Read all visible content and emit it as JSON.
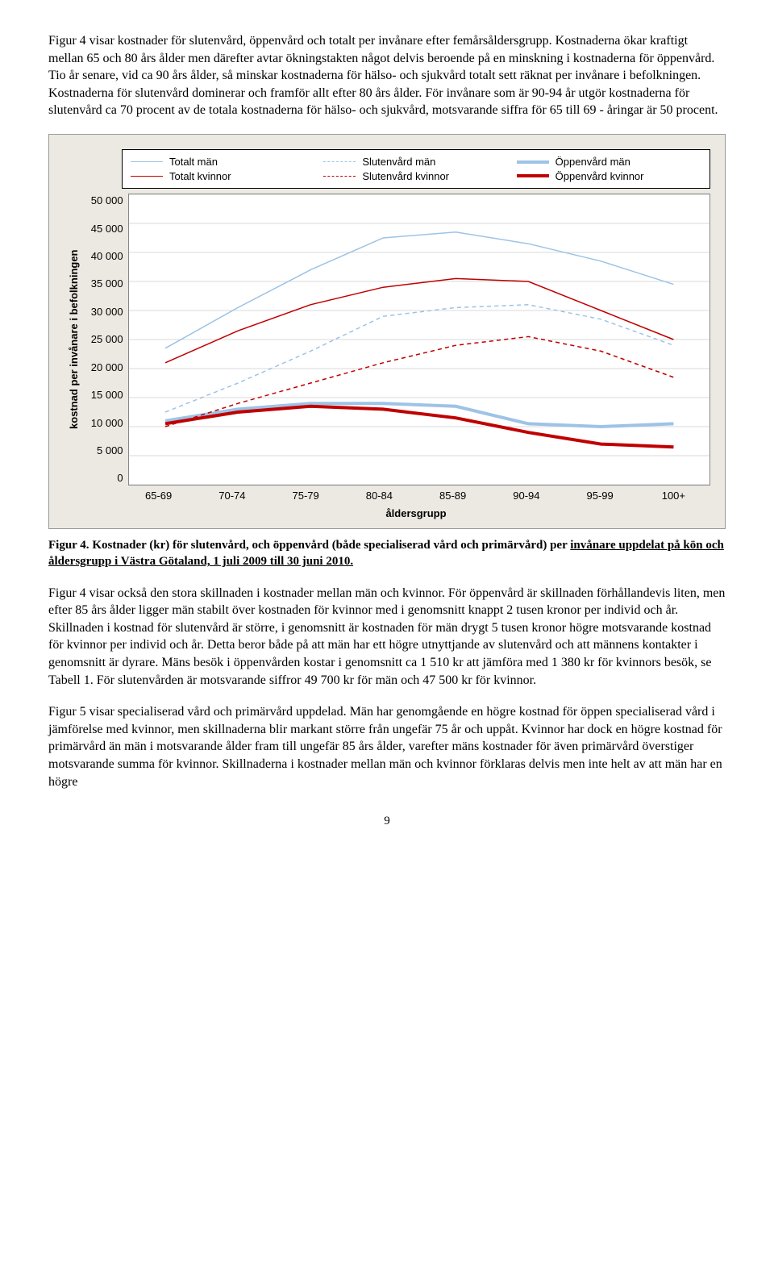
{
  "paragraphs": {
    "p1": "Figur 4 visar kostnader för slutenvård, öppenvård och totalt per invånare efter femårsåldersgrupp. Kostnaderna ökar kraftigt mellan 65 och 80 års ålder men därefter avtar ökningstakten något delvis beroende på en minskning i kostnaderna för öppenvård. Tio år senare, vid ca 90 års ålder, så minskar kostnaderna för hälso- och sjukvård totalt sett räknat per invånare i befolkningen. Kostnaderna för slutenvård dominerar och framför allt efter 80 års ålder. För invånare som är 90-94 år utgör kostnaderna för slutenvård ca 70 procent av de totala kostnaderna för hälso- och sjukvård, motsvarande siffra för 65 till 69 - åringar är 50 procent.",
    "p2": "Figur 4 visar också den stora skillnaden i kostnader mellan män och kvinnor. För öppenvård är skillnaden förhållandevis liten, men efter 85 års ålder ligger män stabilt över kostnaden för kvinnor med i genomsnitt knappt 2 tusen kronor per individ och år. Skillnaden i kostnad för slutenvård är större, i genomsnitt är kostnaden för män drygt 5 tusen kronor högre motsvarande kostnad för kvinnor per individ och år. Detta beror både på att män har ett högre utnyttjande av slutenvård och att männens kontakter i genomsnitt är dyrare. Mäns besök i öppenvården kostar i genomsnitt ca 1 510 kr att jämföra med 1 380 kr för kvinnors besök, se Tabell 1. För slutenvården är motsvarande siffror 49 700 kr för män och 47 500 kr för kvinnor.",
    "p3": "Figur 5 visar specialiserad vård och primärvård uppdelad. Män har genomgående en högre kostnad för öppen specialiserad vård i jämförelse med kvinnor, men skillnaderna blir markant större från ungefär 75 år och uppåt. Kvinnor har dock en högre kostnad för primärvård än män i motsvarande ålder fram till ungefär 85 års ålder, varefter mäns kostnader för även primärvård överstiger motsvarande summa för kvinnor. Skillnaderna i kostnader mellan män och kvinnor förklaras delvis men inte helt av att män har en högre"
  },
  "caption": {
    "lead": "Figur 4.",
    "body_bold": "Kostnader (kr) för slutenvård, och öppenvård (både specialiserad vård och primärvård) per invånare uppdelat på kön och åldersgrupp i Västra Götaland, 1 juli 2009 till 30 juni 2010.",
    "underline_start": "invånare uppdelat på kön och åldersgrupp i Västra Götaland, 1 juli 2009 till 30 juni 2010."
  },
  "page_number": "9",
  "chart": {
    "type": "line",
    "y_axis_title": "kostnad per invånare i befolkningen",
    "x_axis_title": "åldersgrupp",
    "ymin": 0,
    "ymax": 50000,
    "y_ticks": [
      "50 000",
      "45 000",
      "40 000",
      "35 000",
      "30 000",
      "25 000",
      "20 000",
      "15 000",
      "10 000",
      "5 000",
      "0"
    ],
    "x_categories": [
      "65-69",
      "70-74",
      "75-79",
      "80-84",
      "85-89",
      "90-94",
      "95-99",
      "100+"
    ],
    "background_color": "#ffffff",
    "outer_background": "#ece9e2",
    "grid_color": "#d9d9d9",
    "legend": [
      {
        "label": "Totalt män",
        "color": "#9dc3e6",
        "width": 1.5,
        "dash": "0"
      },
      {
        "label": "Slutenvård män",
        "color": "#9dc3e6",
        "width": 1.5,
        "dash": "5,4"
      },
      {
        "label": "Öppenvård män",
        "color": "#9dc3e6",
        "width": 4,
        "dash": "0"
      },
      {
        "label": "Totalt kvinnor",
        "color": "#c00000",
        "width": 1.5,
        "dash": "0"
      },
      {
        "label": "Slutenvård kvinnor",
        "color": "#c00000",
        "width": 1.5,
        "dash": "5,4"
      },
      {
        "label": "Öppenvård kvinnor",
        "color": "#c00000",
        "width": 4,
        "dash": "0"
      }
    ],
    "series": {
      "totalt_man": {
        "color": "#9dc3e6",
        "width": 1.5,
        "dash": "0",
        "values": [
          23500,
          30500,
          37000,
          42500,
          43500,
          41500,
          38500,
          34500
        ]
      },
      "slutenvard_man": {
        "color": "#9dc3e6",
        "width": 1.5,
        "dash": "5,4",
        "values": [
          12500,
          17500,
          23000,
          29000,
          30500,
          31000,
          28500,
          24000
        ]
      },
      "oppenvard_man": {
        "color": "#9dc3e6",
        "width": 4,
        "dash": "0",
        "values": [
          11000,
          13000,
          14000,
          14000,
          13500,
          10500,
          10000,
          10500
        ]
      },
      "totalt_kvinnor": {
        "color": "#c00000",
        "width": 1.5,
        "dash": "0",
        "values": [
          21000,
          26500,
          31000,
          34000,
          35500,
          35000,
          30000,
          25000
        ]
      },
      "slutenvard_kvinnor": {
        "color": "#c00000",
        "width": 1.5,
        "dash": "5,4",
        "values": [
          10000,
          14000,
          17500,
          21000,
          24000,
          25500,
          23000,
          18500
        ]
      },
      "oppenvard_kvinnor": {
        "color": "#c00000",
        "width": 4,
        "dash": "0",
        "values": [
          10500,
          12500,
          13500,
          13000,
          11500,
          9000,
          7000,
          6500
        ]
      }
    }
  }
}
